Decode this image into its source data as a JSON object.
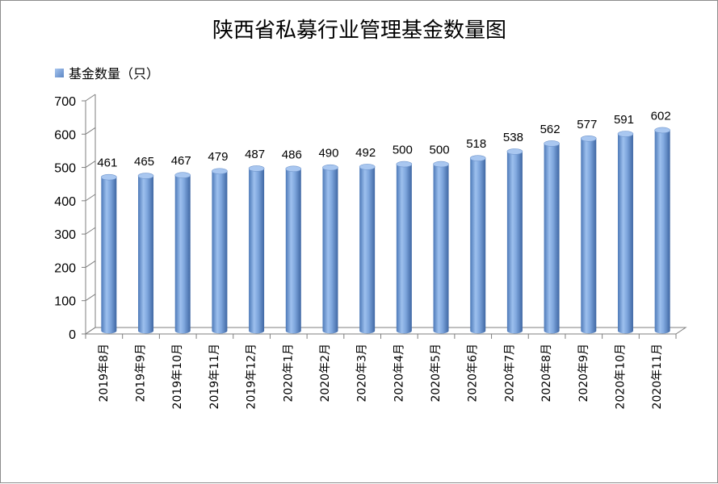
{
  "chart_data": {
    "type": "bar",
    "title": "陕西省私募行业管理基金数量图",
    "legend_position": "top-left",
    "categories": [
      "2019年8月",
      "2019年9月",
      "2019年10月",
      "2019年11月",
      "2019年12月",
      "2020年1月",
      "2020年2月",
      "2020年3月",
      "2020年4月",
      "2020年5月",
      "2020年6月",
      "2020年7月",
      "2020年8月",
      "2020年9月",
      "2020年10月",
      "2020年11月"
    ],
    "series": [
      {
        "name": "基金数量（只）",
        "values": [
          461,
          465,
          467,
          479,
          487,
          486,
          490,
          492,
          500,
          500,
          518,
          538,
          562,
          577,
          591,
          602
        ],
        "color": "#6f9ad4"
      }
    ],
    "ylim": [
      0,
      700
    ],
    "yticks": [
      0,
      100,
      200,
      300,
      400,
      500,
      600,
      700
    ],
    "grid": false,
    "style": "3d-cylinder"
  }
}
